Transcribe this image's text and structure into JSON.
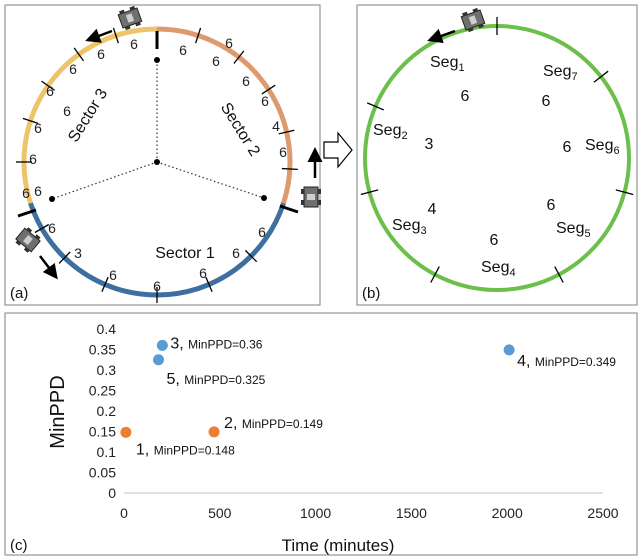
{
  "panel_a": {
    "label": "(a)",
    "sectors": [
      {
        "name": "Sector 1",
        "color": "#3d6fa0"
      },
      {
        "name": "Sector 2",
        "color": "#dd9a6c"
      },
      {
        "name": "Sector 3",
        "color": "#eec46a"
      }
    ],
    "segment_values": [
      {
        "id": "s1-1",
        "text": "6"
      },
      {
        "id": "s1-2",
        "text": "3"
      },
      {
        "id": "s1-3",
        "text": "6"
      },
      {
        "id": "s1-4",
        "text": "6"
      },
      {
        "id": "s1-5",
        "text": "6"
      },
      {
        "id": "s1-6",
        "text": "6"
      },
      {
        "id": "s1-7",
        "text": "6"
      },
      {
        "id": "s1-8",
        "text": "6"
      },
      {
        "id": "s2-1",
        "text": "6"
      },
      {
        "id": "s2-2",
        "text": "6"
      },
      {
        "id": "s2-3",
        "text": "6"
      },
      {
        "id": "s2-4",
        "text": "6"
      },
      {
        "id": "s2-5",
        "text": "4"
      },
      {
        "id": "s2-6",
        "text": "6"
      },
      {
        "id": "s2-7",
        "text": "6"
      },
      {
        "id": "s3-1",
        "text": "6"
      },
      {
        "id": "s3-2",
        "text": "6"
      },
      {
        "id": "s3-3",
        "text": "6"
      },
      {
        "id": "s3-4",
        "text": "6"
      },
      {
        "id": "s3-5",
        "text": "6"
      },
      {
        "id": "s3-6",
        "text": "6"
      },
      {
        "id": "s3-7",
        "text": "6"
      },
      {
        "id": "s3-8",
        "text": "6"
      }
    ]
  },
  "panel_b": {
    "label": "(b)",
    "ring_color": "#6bbf4a",
    "segments": [
      {
        "base": "Seg",
        "sub": "1",
        "value": "6"
      },
      {
        "base": "Seg",
        "sub": "2",
        "value": "3"
      },
      {
        "base": "Seg",
        "sub": "3",
        "value": "4"
      },
      {
        "base": "Seg",
        "sub": "4",
        "value": "6"
      },
      {
        "base": "Seg",
        "sub": "5",
        "value": "6"
      },
      {
        "base": "Seg",
        "sub": "6",
        "value": "6"
      },
      {
        "base": "Seg",
        "sub": "7",
        "value": "6"
      }
    ]
  },
  "panel_c": {
    "label": "(c)",
    "chart_data": {
      "type": "scatter",
      "xlabel": "Time (minutes)",
      "ylabel": "MinPPD",
      "xlim": [
        0,
        2500
      ],
      "ylim": [
        0,
        0.4
      ],
      "xticks": [
        "0",
        "500",
        "1000",
        "1500",
        "2000",
        "2500"
      ],
      "yticks": [
        "0",
        "0.05",
        "0.1",
        "0.15",
        "0.2",
        "0.25",
        "0.3",
        "0.35",
        "0.4"
      ],
      "points": [
        {
          "x": 10,
          "y": 0.148,
          "color": "#ed7d31",
          "num": "1",
          "label": "MinPPD=0.148"
        },
        {
          "x": 470,
          "y": 0.149,
          "color": "#ed7d31",
          "num": "2",
          "label": "MinPPD=0.149"
        },
        {
          "x": 200,
          "y": 0.36,
          "color": "#5b9bd5",
          "num": "3",
          "label": "MinPPD=0.36"
        },
        {
          "x": 2010,
          "y": 0.349,
          "color": "#5b9bd5",
          "num": "4",
          "label": "MinPPD=0.349"
        },
        {
          "x": 180,
          "y": 0.325,
          "color": "#5b9bd5",
          "num": "5",
          "label": "MinPPD=0.325"
        }
      ]
    }
  }
}
